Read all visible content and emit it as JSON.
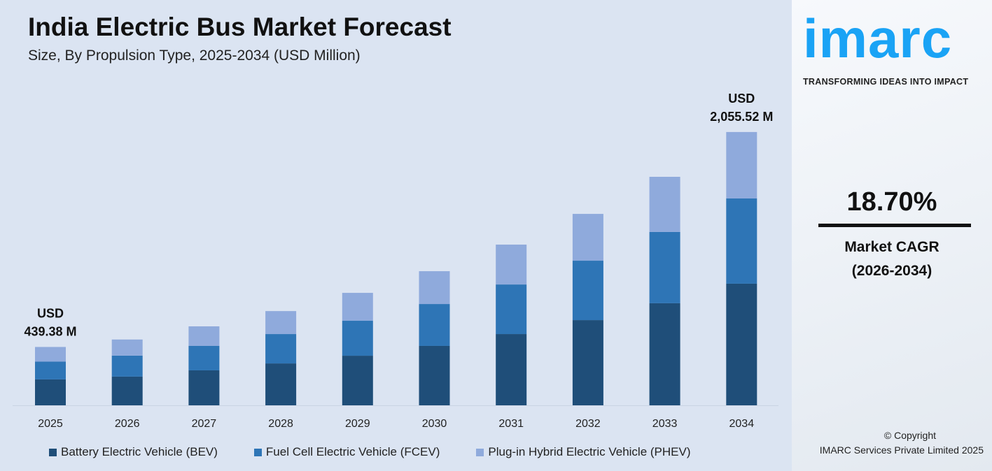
{
  "chart_data": {
    "type": "bar",
    "stacked": true,
    "title": "India Electric Bus Market Forecast",
    "subtitle": "Size, By Propulsion Type, 2025-2034 (USD Million)",
    "categories": [
      "2025",
      "2026",
      "2027",
      "2028",
      "2029",
      "2030",
      "2031",
      "2032",
      "2033",
      "2034"
    ],
    "series": [
      {
        "name": "Battery Electric Vehicle (BEV)",
        "color": "#1f4e79",
        "values": [
          195,
          216,
          263,
          315,
          373,
          447,
          536,
          641,
          768,
          915
        ]
      },
      {
        "name": "Fuel Cell Electric Vehicle (FCEV)",
        "color": "#2e75b6",
        "values": [
          134,
          158,
          184,
          221,
          263,
          315,
          373,
          447,
          536,
          641
        ]
      },
      {
        "name": "Plug-in Hybrid Electric Vehicle (PHEV)",
        "color": "#8faadc",
        "values": [
          110,
          121,
          147,
          173,
          210,
          247,
          300,
          352,
          415,
          500
        ]
      }
    ],
    "annotations": [
      {
        "category": "2025",
        "line1": "USD",
        "line2": "439.38 M"
      },
      {
        "category": "2034",
        "line1": "USD",
        "line2": "2,055.52 M"
      }
    ],
    "ylim": [
      0,
      2055.52
    ],
    "grid": false,
    "legend_placement": "bottom"
  },
  "brand": {
    "logo": "imarc",
    "tagline": "TRANSFORMING IDEAS INTO IMPACT",
    "color": "#1aa3f5"
  },
  "cagr": {
    "value": "18.70%",
    "label": "Market CAGR",
    "period": "(2026-2034)"
  },
  "footer": {
    "copyright": "© Copyright",
    "company": "IMARC Services Private Limited 2025"
  }
}
